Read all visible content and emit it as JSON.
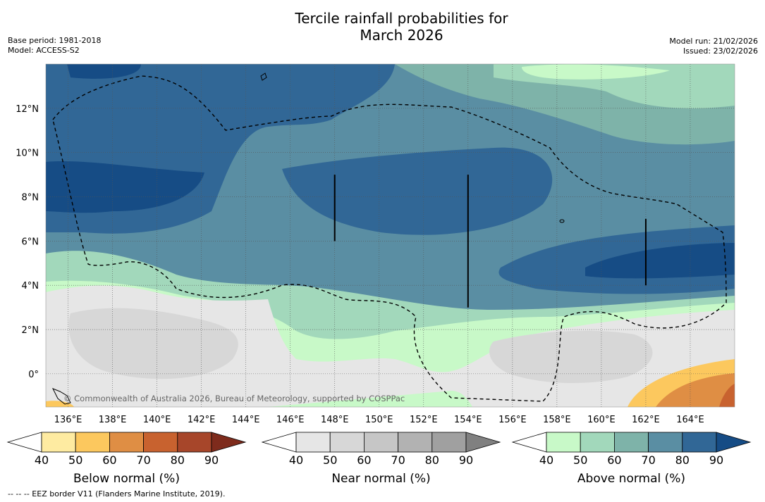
{
  "chart_data": {
    "type": "heatmap",
    "title_line1": "Tercile rainfall probabilities for",
    "title_line2": "March 2026",
    "base_period": "Base period: 1981-2018",
    "model": "Model: ACCESS-S2",
    "model_run": "Model run: 21/02/2026",
    "issued": "Issued: 23/02/2026",
    "copyright": "© Commonwealth of Australia 2026, Bureau of Meteorology, supported by COSPPac",
    "lon_range": [
      135,
      166
    ],
    "lat_range": [
      -1.5,
      14
    ],
    "x_ticks": [
      136,
      138,
      140,
      142,
      144,
      146,
      148,
      150,
      152,
      154,
      156,
      158,
      160,
      162,
      164
    ],
    "x_tick_labels": [
      "136°E",
      "138°E",
      "140°E",
      "142°E",
      "144°E",
      "146°E",
      "148°E",
      "150°E",
      "152°E",
      "154°E",
      "156°E",
      "158°E",
      "160°E",
      "162°E",
      "164°E"
    ],
    "y_ticks": [
      0,
      2,
      4,
      6,
      8,
      10,
      12
    ],
    "y_tick_labels": [
      "0°",
      "2°N",
      "4°N",
      "6°N",
      "8°N",
      "10°N",
      "12°N"
    ],
    "eez_line_segments": [
      {
        "lon": 148,
        "lat_from": 6,
        "lat_to": 9
      },
      {
        "lon": 154,
        "lat_from": 3,
        "lat_to": 9
      },
      {
        "lon": 162,
        "lat_from": 4,
        "lat_to": 7
      }
    ],
    "colorbars": [
      {
        "label": "Below normal (%)",
        "ticks": [
          "40",
          "50",
          "60",
          "70",
          "80",
          "90"
        ],
        "colors": [
          "#ffffff",
          "#feeba1",
          "#fcc85e",
          "#df8e44",
          "#c8622f",
          "#a7462a",
          "#7e2b1c"
        ]
      },
      {
        "label": "Near normal (%)",
        "ticks": [
          "40",
          "50",
          "60",
          "70",
          "80",
          "90"
        ],
        "colors": [
          "#ffffff",
          "#e6e6e6",
          "#d7d7d7",
          "#c6c6c6",
          "#b2b2b2",
          "#a0a0a0",
          "#808080"
        ]
      },
      {
        "label": "Above normal (%)",
        "ticks": [
          "40",
          "50",
          "60",
          "70",
          "80",
          "90"
        ],
        "colors": [
          "#ffffff",
          "#c8f9c8",
          "#a2d8bb",
          "#7eb3a9",
          "#5a8ea3",
          "#316796",
          "#164c85"
        ]
      }
    ],
    "footer": "--  --  -- EEZ border V11 (Flanders Marine Institute, 2019)."
  }
}
